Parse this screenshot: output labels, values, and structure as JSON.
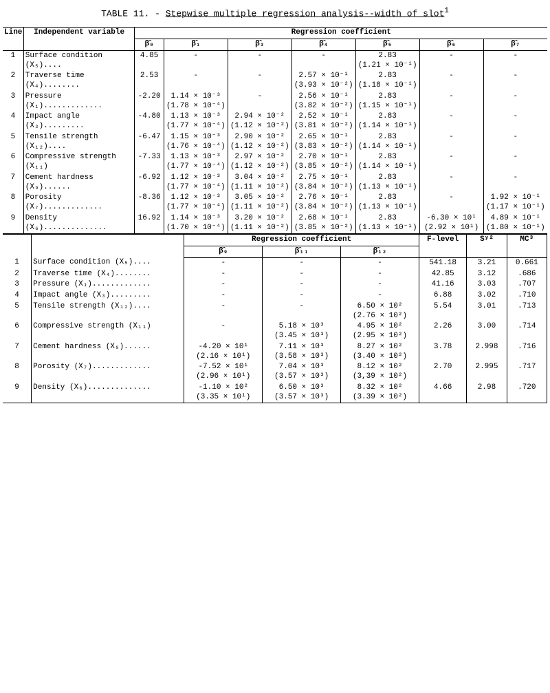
{
  "title_prefix": "TABLE 11. - ",
  "title_main": "Stepwise multiple regression analysis--width of slot",
  "title_sup": "1",
  "headers": {
    "line": "Line",
    "indep": "Independent variable",
    "regcoef": "Regression coefficient",
    "b0": "β̂₀",
    "b1": "β̂₁",
    "b3": "β̂₃",
    "b4": "β̂₄",
    "b5": "β̂₅",
    "b6": "β̂₆",
    "b7": "β̂₇",
    "b9": "β̂₉",
    "b11": "β̂₁₁",
    "b12": "β̂₁₂",
    "flevel": "F-level",
    "sy": "Sʸ²",
    "mc": "MC³"
  },
  "vars": [
    "Surface condition (X₅)....",
    "Traverse time (X₄)........",
    "Pressure (X₁).............",
    "Impact angle (X₃).........",
    "Tensile strength (X₁₂)....",
    "Compressive strength (X₁₁)",
    "Cement hardness (X₉)......",
    "Porosity (X₇).............",
    "Density (X₆).............."
  ],
  "upper": [
    {
      "b0": "4.85",
      "b1": "-",
      "b3": "-",
      "b4": "-",
      "b5": "2.83",
      "b5p": "(1.21 × 10⁻¹)",
      "b6": "-",
      "b7": "-"
    },
    {
      "b0": "2.53",
      "b1": "-",
      "b3": "-",
      "b4": "2.57 × 10⁻¹",
      "b4p": "(3.93 × 10⁻²)",
      "b5": "2.83",
      "b5p": "(1.18 × 10⁻¹)",
      "b6": "-",
      "b7": "-"
    },
    {
      "b0": "-2.20",
      "b1": "1.14 × 10⁻³",
      "b1p": "(1.78 × 10⁻⁴)",
      "b3": "-",
      "b4": "2.56 × 10⁻¹",
      "b4p": "(3.82 × 10⁻²)",
      "b5": "2.83",
      "b5p": "(1.15 × 10⁻¹)",
      "b6": "-",
      "b7": "-"
    },
    {
      "b0": "-4.80",
      "b1": "1.13 × 10⁻³",
      "b1p": "(1.77 × 10⁻⁴)",
      "b3": "2.94 × 10⁻²",
      "b3p": "(1.12 × 10⁻²)",
      "b4": "2.52 × 10⁻¹",
      "b4p": "(3.81 × 10⁻²)",
      "b5": "2.83",
      "b5p": "(1.14 × 10⁻¹)",
      "b6": "-",
      "b7": "-"
    },
    {
      "b0": "-6.47",
      "b1": "1.15 × 10⁻³",
      "b1p": "(1.76 × 10⁻⁴)",
      "b3": "2.90 × 10⁻²",
      "b3p": "(1.12 × 10⁻²)",
      "b4": "2.65 × 10⁻¹",
      "b4p": "(3.83 × 10⁻²)",
      "b5": "2.83",
      "b5p": "(1.14 × 10⁻¹)",
      "b6": "-",
      "b7": "-"
    },
    {
      "b0": "-7.33",
      "b1": "1.13 × 10⁻³",
      "b1p": "(1.77 × 10⁻⁴)",
      "b3": "2.97 × 10⁻²",
      "b3p": "(1.12 × 10⁻²)",
      "b4": "2.70 × 10⁻¹",
      "b4p": "(3.85 × 10⁻²)",
      "b5": "2.83",
      "b5p": "(1.14 × 10⁻¹)",
      "b6": "-",
      "b7": "-"
    },
    {
      "b0": "-6.92",
      "b1": "1.12 × 10⁻³",
      "b1p": "(1.77 × 10⁻⁴)",
      "b3": "3.04 × 10⁻²",
      "b3p": "(1.11 × 10⁻²)",
      "b4": "2.75 × 10⁻¹",
      "b4p": "(3.84 × 10⁻²)",
      "b5": "2.83",
      "b5p": "(1.13 × 10⁻¹)",
      "b6": "-",
      "b7": "-"
    },
    {
      "b0": "-8.36",
      "b1": "1.12 × 10⁻³",
      "b1p": "(1.77 × 10⁻⁴)",
      "b3": "3.05 × 10⁻²",
      "b3p": "(1.11 × 10⁻²)",
      "b4": "2.76 × 10⁻¹",
      "b4p": "(3.84 × 10⁻²)",
      "b5": "2.83",
      "b5p": "(1.13 × 10⁻¹)",
      "b6": "-",
      "b7": "1.92 × 10⁻¹",
      "b7p": "(1.17 × 10⁻¹)"
    },
    {
      "b0": "16.92",
      "b1": "1.14 × 10⁻³",
      "b1p": "(1.70 × 10⁻⁴)",
      "b3": "3.20 × 10⁻²",
      "b3p": "(1.11 × 10⁻²)",
      "b4": "2.68 × 10⁻¹",
      "b4p": "(3.85 × 10⁻²)",
      "b5": "2.83",
      "b5p": "(1.13 × 10⁻¹)",
      "b6": "-6.30 × 10¹",
      "b6p": "(2.92 × 10¹)",
      "b7": "4.89 × 10⁻¹",
      "b7p": "(1.80 × 10⁻¹)"
    }
  ],
  "lower": [
    {
      "b9": "-",
      "b11": "-",
      "b12": "-",
      "f": "541.18",
      "sy": "3.21",
      "mc": "0.661"
    },
    {
      "b9": "-",
      "b11": "-",
      "b12": "-",
      "f": "42.85",
      "sy": "3.12",
      "mc": ".686"
    },
    {
      "b9": "-",
      "b11": "-",
      "b12": "-",
      "f": "41.16",
      "sy": "3.03",
      "mc": ".707"
    },
    {
      "b9": "-",
      "b11": "-",
      "b12": "-",
      "f": "6.88",
      "sy": "3.02",
      "mc": ".710"
    },
    {
      "b9": "-",
      "b11": "-",
      "b12": "6.50 × 10²",
      "b12p": "(2.76 × 10²)",
      "f": "5.54",
      "sy": "3.01",
      "mc": ".713"
    },
    {
      "b9": "-",
      "b11": "5.18 × 10³",
      "b11p": "(3.45 × 10³)",
      "b12": "4.95 × 10²",
      "b12p": "(2.95 × 10²)",
      "f": "2.26",
      "sy": "3.00",
      "mc": ".714"
    },
    {
      "b9": "-4.20 × 10¹",
      "b9p": "(2.16 × 10¹)",
      "b11": "7.11 × 10³",
      "b11p": "(3.58 × 10³)",
      "b12": "8.27 × 10²",
      "b12p": "(3.40 × 10²)",
      "f": "3.78",
      "sy": "2.998",
      "mc": ".716"
    },
    {
      "b9": "-7.52 × 10¹",
      "b9p": "(2.96 × 10¹)",
      "b11": "7.04 × 10³",
      "b11p": "(3.57 × 10³)",
      "b12": "8.12 × 10²",
      "b12p": "(3,39 × 10²)",
      "f": "2.70",
      "sy": "2.995",
      "mc": ".717"
    },
    {
      "b9": "-1.10 × 10²",
      "b9p": "(3.35 × 10¹)",
      "b11": "6.50 × 10³",
      "b11p": "(3.57 × 10³)",
      "b12": "8.32 × 10²",
      "b12p": "(3.39 × 10²)",
      "f": "4.66",
      "sy": "2.98",
      "mc": ".720"
    }
  ]
}
